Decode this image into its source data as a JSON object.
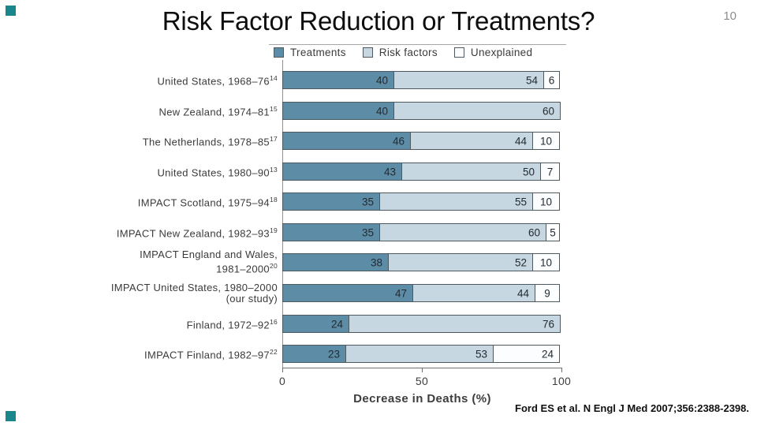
{
  "slide": {
    "title": "Risk Factor Reduction or Treatments?",
    "page_number": "10",
    "citation": "Ford ES et al. N Engl J Med 2007;356:2388-2398.",
    "accent_color": "#19868b"
  },
  "chart_data": {
    "type": "bar",
    "stacked": true,
    "orientation": "horizontal",
    "xlabel": "Decrease in Deaths (%)",
    "xlim": [
      0,
      100
    ],
    "x_ticks": [
      0,
      50,
      100
    ],
    "grid": false,
    "legend_position": "top",
    "legend": [
      {
        "label": "Treatments",
        "color": "#5d8ca6"
      },
      {
        "label": "Risk factors",
        "color": "#c6d7e1"
      },
      {
        "label": "Unexplained",
        "color": "#fcfdfe"
      }
    ],
    "categories": [
      {
        "lines": [
          "United States, 1968–76"
        ],
        "ref": "14"
      },
      {
        "lines": [
          "New Zealand, 1974–81"
        ],
        "ref": "15"
      },
      {
        "lines": [
          "The Netherlands, 1978–85"
        ],
        "ref": "17"
      },
      {
        "lines": [
          "United States, 1980–90"
        ],
        "ref": "13"
      },
      {
        "lines": [
          "IMPACT Scotland, 1975–94"
        ],
        "ref": "18"
      },
      {
        "lines": [
          "IMPACT New Zealand, 1982–93"
        ],
        "ref": "19"
      },
      {
        "lines": [
          "IMPACT England and Wales,",
          "1981–2000"
        ],
        "ref": "20"
      },
      {
        "lines": [
          "IMPACT United States, 1980–2000",
          "(our study)"
        ],
        "ref": ""
      },
      {
        "lines": [
          "Finland, 1972–92"
        ],
        "ref": "16"
      },
      {
        "lines": [
          "IMPACT Finland, 1982–97"
        ],
        "ref": "22"
      }
    ],
    "series": [
      {
        "name": "Treatments",
        "values": [
          40,
          40,
          46,
          43,
          35,
          35,
          38,
          47,
          24,
          23
        ]
      },
      {
        "name": "Risk factors",
        "values": [
          54,
          60,
          44,
          50,
          55,
          60,
          52,
          44,
          76,
          53
        ]
      },
      {
        "name": "Unexplained",
        "values": [
          6,
          null,
          10,
          7,
          10,
          5,
          10,
          9,
          null,
          24
        ]
      }
    ]
  }
}
